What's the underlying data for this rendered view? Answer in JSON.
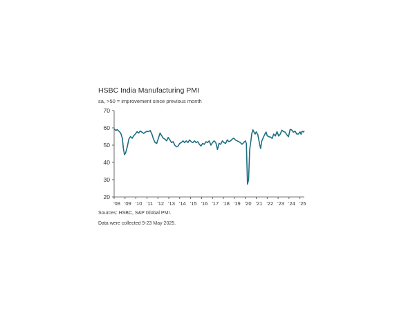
{
  "chart_data": {
    "type": "line",
    "title": "HSBC India Manufacturing PMI",
    "subtitle": "sa, >50 = improvement since previous month",
    "xlabel": "",
    "ylabel": "",
    "ylim": [
      20,
      70
    ],
    "y_ticks": [
      20,
      30,
      40,
      50,
      60,
      70
    ],
    "x_tick_labels": [
      "'08",
      "'09",
      "'10",
      "'11",
      "'12",
      "'13",
      "'14",
      "'15",
      "'16",
      "'17",
      "'18",
      "'19",
      "'20",
      "'21",
      "'22",
      "'23",
      "'24",
      "'25"
    ],
    "x_tick_years": [
      2008,
      2009,
      2010,
      2011,
      2012,
      2013,
      2014,
      2015,
      2016,
      2017,
      2018,
      2019,
      2020,
      2021,
      2022,
      2023,
      2024,
      2025
    ],
    "xlim": [
      2008.0,
      2025.4
    ],
    "grid": false,
    "line_color": "#1c6e80",
    "series": [
      {
        "points": [
          [
            2008.0,
            59.5
          ],
          [
            2008.15,
            58.5
          ],
          [
            2008.3,
            59.0
          ],
          [
            2008.45,
            58.0
          ],
          [
            2008.6,
            57.0
          ],
          [
            2008.75,
            54.0
          ],
          [
            2008.85,
            48.0
          ],
          [
            2008.95,
            44.5
          ],
          [
            2009.05,
            45.5
          ],
          [
            2009.2,
            49.0
          ],
          [
            2009.35,
            53.5
          ],
          [
            2009.5,
            55.0
          ],
          [
            2009.65,
            54.0
          ],
          [
            2009.8,
            55.5
          ],
          [
            2009.95,
            56.5
          ],
          [
            2010.1,
            57.8
          ],
          [
            2010.25,
            57.0
          ],
          [
            2010.4,
            58.2
          ],
          [
            2010.55,
            57.5
          ],
          [
            2010.7,
            56.8
          ],
          [
            2010.85,
            57.5
          ],
          [
            2011.0,
            58.0
          ],
          [
            2011.15,
            57.8
          ],
          [
            2011.3,
            58.5
          ],
          [
            2011.45,
            56.5
          ],
          [
            2011.6,
            53.5
          ],
          [
            2011.75,
            51.5
          ],
          [
            2011.9,
            51.0
          ],
          [
            2012.05,
            54.0
          ],
          [
            2012.2,
            57.0
          ],
          [
            2012.35,
            55.5
          ],
          [
            2012.5,
            54.0
          ],
          [
            2012.65,
            53.5
          ],
          [
            2012.8,
            52.5
          ],
          [
            2012.95,
            54.5
          ],
          [
            2013.1,
            53.0
          ],
          [
            2013.25,
            51.5
          ],
          [
            2013.4,
            52.0
          ],
          [
            2013.55,
            50.0
          ],
          [
            2013.7,
            49.0
          ],
          [
            2013.85,
            49.5
          ],
          [
            2014.0,
            51.0
          ],
          [
            2014.15,
            51.5
          ],
          [
            2014.3,
            52.5
          ],
          [
            2014.45,
            51.5
          ],
          [
            2014.6,
            52.5
          ],
          [
            2014.75,
            51.5
          ],
          [
            2014.9,
            53.0
          ],
          [
            2015.05,
            52.0
          ],
          [
            2015.2,
            51.5
          ],
          [
            2015.35,
            52.5
          ],
          [
            2015.5,
            51.5
          ],
          [
            2015.65,
            52.0
          ],
          [
            2015.8,
            50.5
          ],
          [
            2015.95,
            49.5
          ],
          [
            2016.1,
            51.0
          ],
          [
            2016.25,
            50.5
          ],
          [
            2016.4,
            52.0
          ],
          [
            2016.55,
            51.5
          ],
          [
            2016.7,
            52.5
          ],
          [
            2016.85,
            50.0
          ],
          [
            2017.0,
            51.5
          ],
          [
            2017.15,
            52.5
          ],
          [
            2017.3,
            51.5
          ],
          [
            2017.45,
            47.5
          ],
          [
            2017.6,
            51.0
          ],
          [
            2017.75,
            50.5
          ],
          [
            2017.9,
            52.5
          ],
          [
            2018.05,
            51.5
          ],
          [
            2018.2,
            51.0
          ],
          [
            2018.35,
            53.0
          ],
          [
            2018.5,
            52.0
          ],
          [
            2018.65,
            52.5
          ],
          [
            2018.8,
            53.5
          ],
          [
            2018.95,
            54.0
          ],
          [
            2019.1,
            53.0
          ],
          [
            2019.25,
            52.5
          ],
          [
            2019.4,
            52.0
          ],
          [
            2019.55,
            51.5
          ],
          [
            2019.7,
            50.5
          ],
          [
            2019.85,
            51.5
          ],
          [
            2020.0,
            52.5
          ],
          [
            2020.1,
            51.0
          ],
          [
            2020.2,
            27.4
          ],
          [
            2020.3,
            30.0
          ],
          [
            2020.4,
            47.5
          ],
          [
            2020.5,
            52.0
          ],
          [
            2020.6,
            56.8
          ],
          [
            2020.7,
            58.9
          ],
          [
            2020.8,
            57.5
          ],
          [
            2020.9,
            56.4
          ],
          [
            2021.0,
            57.7
          ],
          [
            2021.15,
            56.0
          ],
          [
            2021.3,
            50.8
          ],
          [
            2021.4,
            48.1
          ],
          [
            2021.5,
            52.3
          ],
          [
            2021.6,
            53.7
          ],
          [
            2021.75,
            55.9
          ],
          [
            2021.9,
            57.6
          ],
          [
            2022.0,
            55.5
          ],
          [
            2022.15,
            54.9
          ],
          [
            2022.3,
            54.7
          ],
          [
            2022.45,
            53.9
          ],
          [
            2022.6,
            56.4
          ],
          [
            2022.75,
            55.3
          ],
          [
            2022.9,
            57.8
          ],
          [
            2023.05,
            55.3
          ],
          [
            2023.2,
            56.4
          ],
          [
            2023.35,
            58.7
          ],
          [
            2023.5,
            57.8
          ],
          [
            2023.65,
            57.5
          ],
          [
            2023.8,
            56.0
          ],
          [
            2023.95,
            54.9
          ],
          [
            2024.1,
            59.1
          ],
          [
            2024.25,
            58.8
          ],
          [
            2024.4,
            57.5
          ],
          [
            2024.55,
            58.1
          ],
          [
            2024.7,
            56.5
          ],
          [
            2024.85,
            56.4
          ],
          [
            2025.0,
            57.7
          ],
          [
            2025.1,
            56.3
          ],
          [
            2025.2,
            58.1
          ],
          [
            2025.3,
            57.6
          ],
          [
            2025.4,
            58.2
          ]
        ]
      }
    ]
  },
  "sources_line": "Sources: HSBC, S&P Global PMI.",
  "collection_note": "Data were collected 9-23 May 2025."
}
